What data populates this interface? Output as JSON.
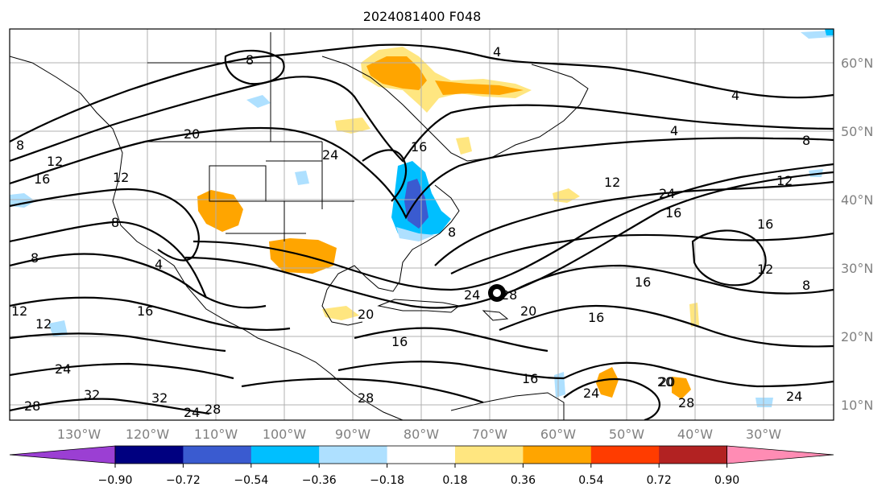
{
  "title": "2024081400 F048",
  "lon_labels": [
    "130°W",
    "120°W",
    "110°W",
    "100°W",
    "90°W",
    "80°W",
    "70°W",
    "60°W",
    "50°W",
    "40°W",
    "30°W"
  ],
  "lat_labels": [
    "60°N",
    "50°N",
    "40°N",
    "30°N",
    "20°N",
    "10°N"
  ],
  "colorbar": {
    "ticks": [
      "−0.90",
      "−0.72",
      "−0.54",
      "−0.36",
      "−0.18",
      "0.18",
      "0.36",
      "0.54",
      "0.72",
      "0.90"
    ],
    "colors": [
      "#9b3fd3",
      "#000080",
      "#3a5bd0",
      "#00bfff",
      "#aee0ff",
      "#ffffff",
      "#ffe680",
      "#ffa500",
      "#ff3c00",
      "#b22222",
      "#ff8cb4"
    ]
  },
  "contour_labels": [
    "8",
    "4",
    "4",
    "4",
    "8",
    "8",
    "12",
    "16",
    "12",
    "8",
    "20",
    "12",
    "24",
    "8",
    "4",
    "12",
    "16",
    "12",
    "24",
    "16",
    "24",
    "20",
    "28",
    "20",
    "16",
    "16",
    "12",
    "8",
    "16",
    "24",
    "20",
    "28",
    "32",
    "32",
    "28",
    "24",
    "28",
    "16",
    "24",
    "20",
    "28",
    "24",
    "12",
    "16",
    "16",
    "8"
  ]
}
